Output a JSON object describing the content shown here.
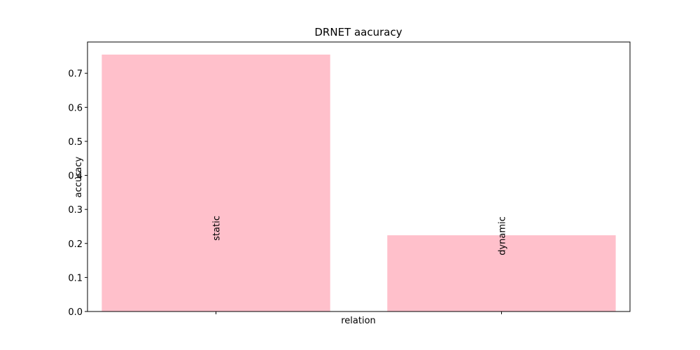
{
  "chart_data": {
    "type": "bar",
    "title": "DRNET aacuracy",
    "xlabel": "relation",
    "ylabel": "accuracy",
    "categories": [
      "static",
      "dynamic"
    ],
    "values": [
      0.755,
      0.224
    ],
    "ylim": [
      0.0,
      0.792
    ],
    "yticks": [
      "0.0",
      "0.1",
      "0.2",
      "0.3",
      "0.4",
      "0.5",
      "0.6",
      "0.7"
    ],
    "bar_color": "#ffc0cb",
    "grid": false,
    "legend": "none"
  }
}
